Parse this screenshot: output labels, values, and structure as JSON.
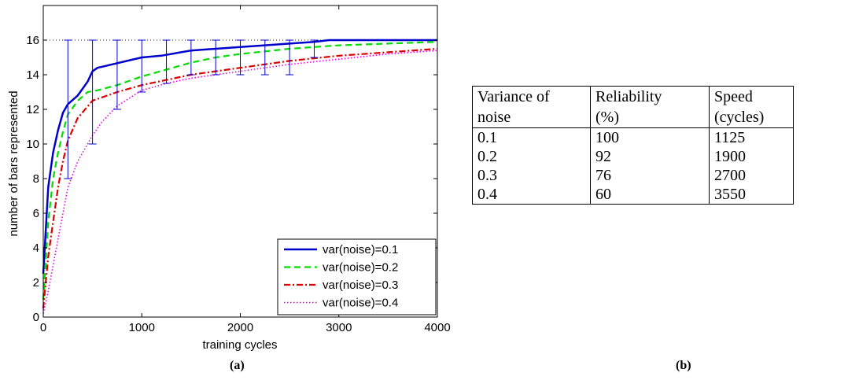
{
  "chart_data": {
    "type": "line",
    "title": "",
    "xlabel": "training cycles",
    "ylabel": "number of bars represented",
    "xlim": [
      0,
      4000
    ],
    "ylim": [
      0,
      18
    ],
    "xticks": [
      "0",
      "1000",
      "2000",
      "3000",
      "4000"
    ],
    "yticks": [
      "0",
      "2",
      "4",
      "6",
      "8",
      "10",
      "12",
      "14",
      "16"
    ],
    "grid": false,
    "legend_position": "bottom-right",
    "reference_line_y": 16,
    "series": [
      {
        "name": "var(noise)=0.1",
        "color": "#0000cc",
        "style": "solid",
        "points": [
          [
            0,
            2.5
          ],
          [
            50,
            7.5
          ],
          [
            100,
            9.5
          ],
          [
            150,
            10.8
          ],
          [
            200,
            11.8
          ],
          [
            250,
            12.3
          ],
          [
            350,
            12.8
          ],
          [
            450,
            13.6
          ],
          [
            500,
            14.2
          ],
          [
            550,
            14.4
          ],
          [
            700,
            14.6
          ],
          [
            850,
            14.8
          ],
          [
            1000,
            15.0
          ],
          [
            1200,
            15.1
          ],
          [
            1400,
            15.3
          ],
          [
            1500,
            15.4
          ],
          [
            1750,
            15.5
          ],
          [
            2000,
            15.6
          ],
          [
            2250,
            15.7
          ],
          [
            2500,
            15.8
          ],
          [
            2750,
            15.9
          ],
          [
            2900,
            16.0
          ],
          [
            3500,
            16.0
          ],
          [
            4000,
            16.0
          ]
        ]
      },
      {
        "name": "var(noise)=0.2",
        "color": "#00dd00",
        "style": "dashed",
        "points": [
          [
            0,
            1.0
          ],
          [
            50,
            5.5
          ],
          [
            100,
            8.0
          ],
          [
            150,
            9.5
          ],
          [
            200,
            10.7
          ],
          [
            250,
            11.7
          ],
          [
            350,
            12.5
          ],
          [
            450,
            13.0
          ],
          [
            550,
            13.1
          ],
          [
            750,
            13.4
          ],
          [
            1000,
            13.9
          ],
          [
            1250,
            14.3
          ],
          [
            1500,
            14.7
          ],
          [
            1750,
            15.0
          ],
          [
            2000,
            15.2
          ],
          [
            2500,
            15.5
          ],
          [
            3000,
            15.7
          ],
          [
            3500,
            15.8
          ],
          [
            4000,
            15.9
          ]
        ]
      },
      {
        "name": "var(noise)=0.3",
        "color": "#dd0000",
        "style": "dashdot",
        "points": [
          [
            0,
            0.5
          ],
          [
            50,
            3.5
          ],
          [
            100,
            5.5
          ],
          [
            150,
            7.5
          ],
          [
            200,
            9.0
          ],
          [
            250,
            10.2
          ],
          [
            350,
            11.5
          ],
          [
            500,
            12.5
          ],
          [
            750,
            13.0
          ],
          [
            1000,
            13.4
          ],
          [
            1250,
            13.7
          ],
          [
            1500,
            14.0
          ],
          [
            1750,
            14.2
          ],
          [
            2000,
            14.4
          ],
          [
            2500,
            14.8
          ],
          [
            3000,
            15.1
          ],
          [
            3500,
            15.3
          ],
          [
            4000,
            15.5
          ]
        ]
      },
      {
        "name": "var(noise)=0.4",
        "color": "#ee00ee",
        "style": "dotted",
        "points": [
          [
            0,
            0.2
          ],
          [
            50,
            1.5
          ],
          [
            100,
            3.0
          ],
          [
            150,
            4.5
          ],
          [
            200,
            6.0
          ],
          [
            250,
            7.5
          ],
          [
            350,
            9.0
          ],
          [
            500,
            10.5
          ],
          [
            600,
            11.3
          ],
          [
            750,
            12.2
          ],
          [
            1000,
            13.1
          ],
          [
            1250,
            13.5
          ],
          [
            1500,
            13.8
          ],
          [
            1750,
            14.0
          ],
          [
            2000,
            14.2
          ],
          [
            2500,
            14.6
          ],
          [
            3000,
            14.9
          ],
          [
            3500,
            15.2
          ],
          [
            4000,
            15.4
          ]
        ]
      }
    ],
    "error_bars": [
      {
        "x": 250,
        "low": 8,
        "high": 16
      },
      {
        "x": 500,
        "low": 10,
        "high": 16
      },
      {
        "x": 750,
        "low": 12,
        "high": 16
      },
      {
        "x": 1000,
        "low": 13,
        "high": 16
      },
      {
        "x": 1250,
        "low": 13.5,
        "high": 16
      },
      {
        "x": 1500,
        "low": 14,
        "high": 16
      },
      {
        "x": 1750,
        "low": 14,
        "high": 16
      },
      {
        "x": 2000,
        "low": 14,
        "high": 16
      },
      {
        "x": 2250,
        "low": 14,
        "high": 16
      },
      {
        "x": 2500,
        "low": 14,
        "high": 16
      },
      {
        "x": 2750,
        "low": 15,
        "high": 16
      }
    ]
  },
  "captions": {
    "left": "(a)",
    "right": "(b)"
  },
  "table": {
    "headers": [
      [
        "Variance of",
        "noise"
      ],
      [
        "Reliability",
        "(%)"
      ],
      [
        "Speed",
        "(cycles)"
      ]
    ],
    "rows": [
      [
        "0.1",
        "100",
        "1125"
      ],
      [
        "0.2",
        "92",
        "1900"
      ],
      [
        "0.3",
        "76",
        "2700"
      ],
      [
        "0.4",
        "60",
        "3550"
      ]
    ]
  }
}
